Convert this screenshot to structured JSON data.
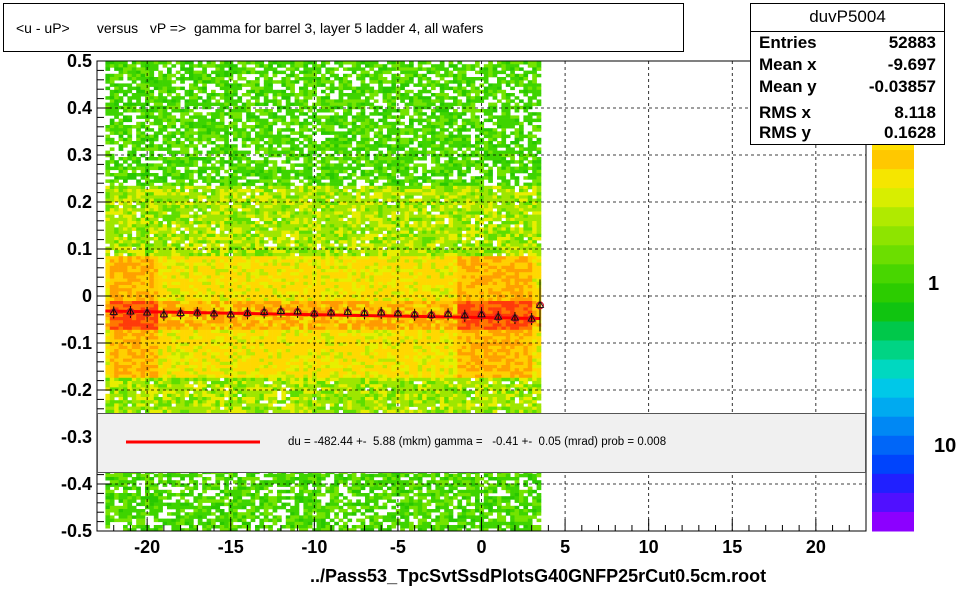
{
  "title": "<u - uP>       versus   vP =>  gamma for barrel 3, layer 5 ladder 4, all wafers",
  "footer": "../Pass53_TpcSvtSsdPlotsG40GNFP25rCut0.5cm.root",
  "stats": {
    "name": "duvP5004",
    "rows": [
      {
        "label": "Entries",
        "value": "52883"
      },
      {
        "label": "Mean x",
        "value": "-9.697"
      },
      {
        "label": "Mean y",
        "value": "-0.03857"
      },
      {
        "label": "RMS x",
        "value": "8.118"
      },
      {
        "label": "RMS y",
        "value": "0.1628"
      }
    ]
  },
  "legend": {
    "text": "du = -482.44 +-  5.88 (mkm) gamma =   -0.41 +-  0.05 (mrad) prob = 0.008",
    "line_color": "#ff0000"
  },
  "chart_data": {
    "type": "heatmap",
    "title": "<u - uP>       versus   vP =>  gamma for barrel 3, layer 5 ladder 4, all wafers",
    "xlabel": "",
    "ylabel": "",
    "xlim": [
      -23,
      23
    ],
    "ylim": [
      -0.5,
      0.5
    ],
    "x_ticks": [
      "-20",
      "-15",
      "-10",
      "-5",
      "0",
      "5",
      "10",
      "15",
      "20"
    ],
    "y_ticks": [
      "-0.5",
      "-0.4",
      "-0.3",
      "-0.2",
      "-0.1",
      "0",
      "0.1",
      "0.2",
      "0.3",
      "0.4",
      "0.5"
    ],
    "x_tick_values": [
      -20,
      -15,
      -10,
      -5,
      0,
      5,
      10,
      15,
      20
    ],
    "y_tick_values": [
      -0.5,
      -0.4,
      -0.3,
      -0.2,
      -0.1,
      0,
      0.1,
      0.2,
      0.3,
      0.4,
      0.5
    ],
    "grid": true,
    "filled_x_range": [
      -22.5,
      3.5
    ],
    "hot_x_ranges": [
      [
        -22.3,
        -19.5
      ],
      [
        -1.5,
        3.0
      ]
    ],
    "colorbar_labels": [
      "1",
      "10"
    ],
    "profile": {
      "x": [
        -22,
        -21,
        -20,
        -19,
        -18,
        -17,
        -16,
        -15,
        -14,
        -13,
        -12,
        -11,
        -10,
        -9,
        -8,
        -7,
        -6,
        -5,
        -4,
        -3,
        -2,
        -1,
        0,
        1,
        2,
        3,
        3.5
      ],
      "y": [
        -0.035,
        -0.034,
        -0.036,
        -0.04,
        -0.037,
        -0.036,
        -0.038,
        -0.04,
        -0.037,
        -0.035,
        -0.033,
        -0.034,
        -0.038,
        -0.036,
        -0.035,
        -0.037,
        -0.036,
        -0.038,
        -0.04,
        -0.041,
        -0.039,
        -0.042,
        -0.04,
        -0.045,
        -0.047,
        -0.049,
        -0.02
      ]
    },
    "fit": {
      "x": [
        -22.5,
        3.5
      ],
      "y": [
        -0.032,
        -0.048
      ]
    }
  }
}
